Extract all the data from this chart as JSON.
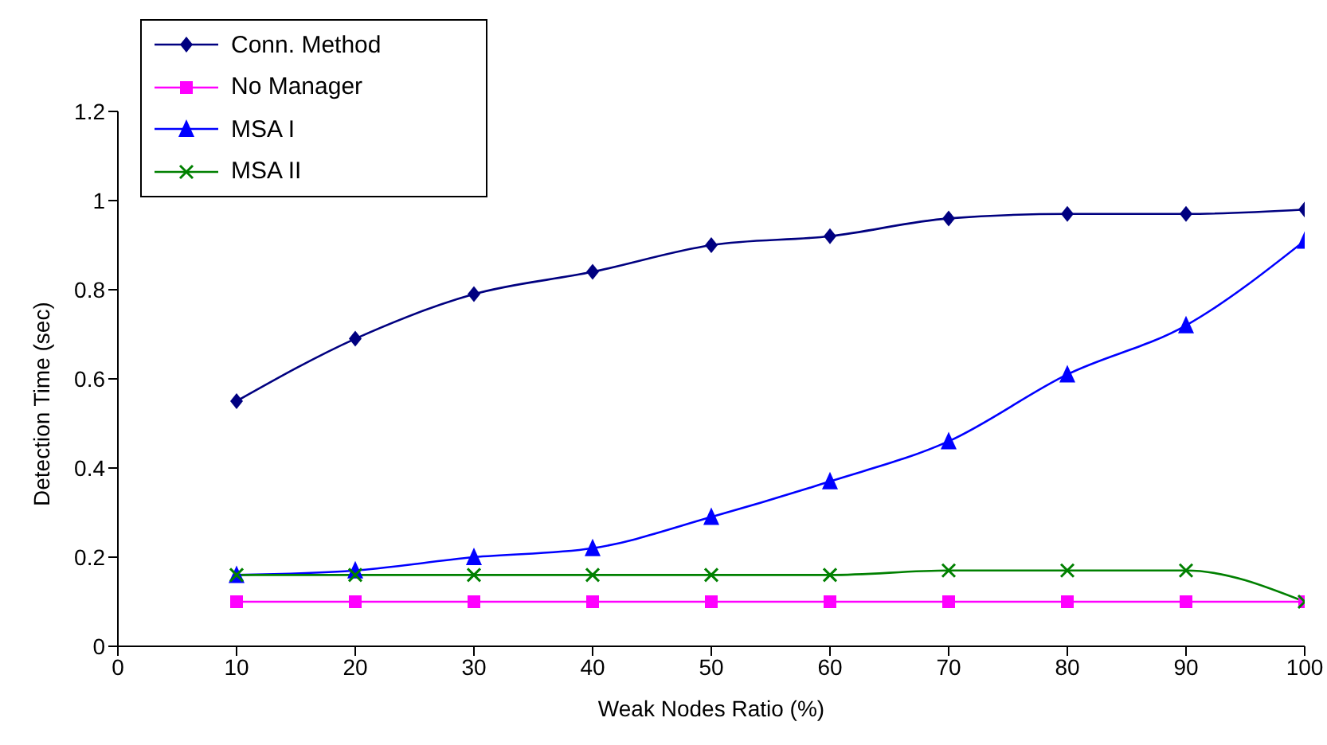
{
  "chart_data": {
    "type": "line",
    "xlabel": "Weak Nodes Ratio (%)",
    "ylabel": "Detection Time (sec)",
    "x": [
      10,
      20,
      30,
      40,
      50,
      60,
      70,
      80,
      90,
      100
    ],
    "series": [
      {
        "name": "Conn. Method",
        "color": "#000080",
        "marker": "diamond",
        "values": [
          0.55,
          0.69,
          0.79,
          0.84,
          0.9,
          0.92,
          0.96,
          0.97,
          0.97,
          0.98
        ]
      },
      {
        "name": "No Manager",
        "color": "#ff00ff",
        "marker": "square",
        "values": [
          0.1,
          0.1,
          0.1,
          0.1,
          0.1,
          0.1,
          0.1,
          0.1,
          0.1,
          0.1
        ]
      },
      {
        "name": "MSA I",
        "color": "#0000ff",
        "marker": "triangle",
        "values": [
          0.16,
          0.17,
          0.2,
          0.22,
          0.29,
          0.37,
          0.46,
          0.61,
          0.72,
          0.91
        ]
      },
      {
        "name": "MSA II",
        "color": "#008000",
        "marker": "cross",
        "values": [
          0.16,
          0.16,
          0.16,
          0.16,
          0.16,
          0.16,
          0.17,
          0.17,
          0.17,
          0.1
        ]
      }
    ],
    "xlim": [
      0,
      100
    ],
    "xticks": [
      0,
      10,
      20,
      30,
      40,
      50,
      60,
      70,
      80,
      90,
      100
    ],
    "ylim": [
      0,
      1.2
    ],
    "yticks": [
      0,
      0.2,
      0.4,
      0.6,
      0.8,
      1,
      1.2
    ],
    "grid": false,
    "legend": "top left",
    "line_style": "solid"
  }
}
